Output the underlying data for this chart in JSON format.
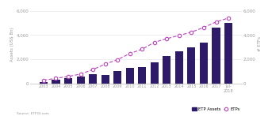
{
  "years": [
    "2003",
    "2004",
    "2005",
    "2006",
    "2007",
    "2008",
    "2009",
    "2010",
    "2011",
    "2012",
    "2013",
    "2014",
    "2015",
    "2016",
    "2017",
    "Jul-\n2018"
  ],
  "etf_assets": [
    150,
    310,
    420,
    570,
    800,
    710,
    1000,
    1310,
    1350,
    1750,
    2250,
    2640,
    2960,
    3390,
    4600,
    5000
  ],
  "etf_count": [
    270,
    430,
    580,
    780,
    1150,
    1600,
    1970,
    2470,
    2830,
    3400,
    3700,
    3960,
    4240,
    4620,
    5075,
    5400
  ],
  "bar_color": "#2d1b69",
  "line_color": "#bb44bb",
  "marker_face": "#ffffff",
  "marker_edge": "#bb44bb",
  "ylabel_left": "Assets (US$ Bn)",
  "ylabel_right": "# ETFs",
  "ylim_left": [
    0,
    6500
  ],
  "ylim_right": [
    0,
    6500
  ],
  "yticks_left": [
    0,
    2000,
    4000,
    6000
  ],
  "yticks_right": [
    0,
    2000,
    4000,
    6000
  ],
  "source_text": "Source: ETFGI.com",
  "legend_bar_label": "ETP Assets",
  "legend_line_label": "ETPs",
  "background_color": "#ffffff",
  "grid_color": "#e0e0e0",
  "tick_color": "#999999",
  "spine_color": "#cccccc"
}
